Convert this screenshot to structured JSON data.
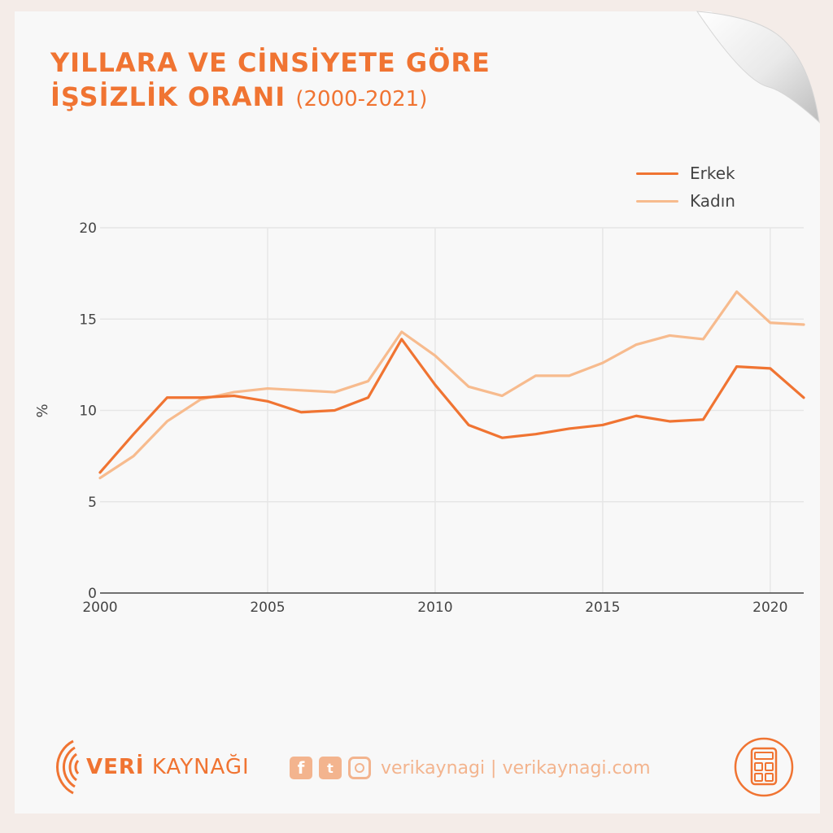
{
  "title": {
    "line1": "YILLARA VE CİNSİYETE GÖRE",
    "line2": "İŞSİZLİK ORANI",
    "years": "(2000-2021)"
  },
  "footer": {
    "brand_bold": "VERİ",
    "brand_rest": "KAYNAĞI",
    "social_text": "verikaynagi | verikaynagi.com",
    "icons": [
      "facebook-icon",
      "twitter-icon",
      "instagram-icon",
      "calculator-icon"
    ]
  },
  "colors": {
    "accent": "#f07432",
    "erkek": "#f07432",
    "kadin": "#f7bb8e",
    "grid": "#e6e6e6"
  },
  "chart_data": {
    "type": "line",
    "xlabel": "",
    "ylabel": "%",
    "xlim": [
      2000,
      2021
    ],
    "ylim": [
      0,
      20
    ],
    "xticks": [
      2000,
      2005,
      2010,
      2015,
      2020
    ],
    "yticks": [
      0,
      5,
      10,
      15,
      20
    ],
    "grid": true,
    "legend_position": "top-right",
    "x": [
      2000,
      2001,
      2002,
      2003,
      2004,
      2005,
      2006,
      2007,
      2008,
      2009,
      2010,
      2011,
      2012,
      2013,
      2014,
      2015,
      2016,
      2017,
      2018,
      2019,
      2020,
      2021
    ],
    "series": [
      {
        "name": "Erkek",
        "values": [
          6.6,
          8.7,
          10.7,
          10.7,
          10.8,
          10.5,
          9.9,
          10.0,
          10.7,
          13.9,
          11.4,
          9.2,
          8.5,
          8.7,
          9.0,
          9.2,
          9.7,
          9.4,
          9.5,
          12.4,
          12.3,
          10.7
        ]
      },
      {
        "name": "Kadın",
        "values": [
          6.3,
          7.5,
          9.4,
          10.6,
          11.0,
          11.2,
          11.1,
          11.0,
          11.6,
          14.3,
          13.0,
          11.3,
          10.8,
          11.9,
          11.9,
          12.6,
          13.6,
          14.1,
          13.9,
          16.5,
          14.8,
          14.7
        ]
      }
    ]
  }
}
